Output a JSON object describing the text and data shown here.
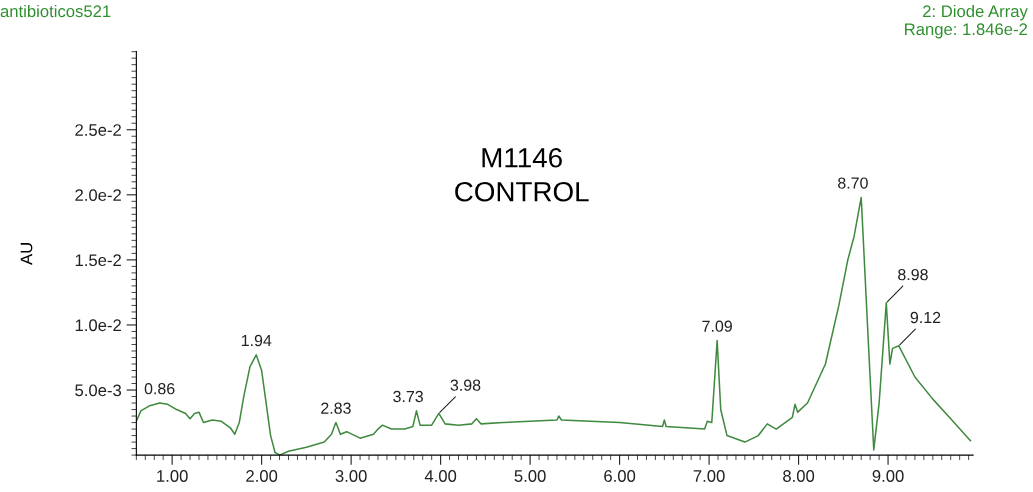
{
  "chart_data": {
    "type": "line",
    "ylabel": "AU",
    "x": [
      0.6,
      0.65,
      0.75,
      0.86,
      0.95,
      1.05,
      1.15,
      1.2,
      1.25,
      1.3,
      1.35,
      1.45,
      1.55,
      1.65,
      1.7,
      1.75,
      1.8,
      1.87,
      1.94,
      2.0,
      2.05,
      2.1,
      2.15,
      2.2,
      2.3,
      2.5,
      2.7,
      2.78,
      2.83,
      2.88,
      2.95,
      3.1,
      3.25,
      3.3,
      3.35,
      3.45,
      3.6,
      3.69,
      3.73,
      3.77,
      3.9,
      3.98,
      4.05,
      4.2,
      4.35,
      4.4,
      4.45,
      4.7,
      5.0,
      5.3,
      5.32,
      5.35,
      6.0,
      6.48,
      6.5,
      6.52,
      6.95,
      6.98,
      7.03,
      7.09,
      7.13,
      7.2,
      7.4,
      7.55,
      7.65,
      7.75,
      7.85,
      7.93,
      7.96,
      7.99,
      8.1,
      8.3,
      8.45,
      8.55,
      8.62,
      8.7,
      8.77,
      8.84,
      8.9,
      8.98,
      9.02,
      9.05,
      9.12,
      9.3,
      9.5,
      9.7,
      9.92
    ],
    "series": [
      {
        "color": "#3f8a3f",
        "values": [
          0.0026,
          0.0034,
          0.0038,
          0.004,
          0.0039,
          0.0035,
          0.0032,
          0.0028,
          0.0032,
          0.0033,
          0.0025,
          0.0027,
          0.0026,
          0.0021,
          0.0016,
          0.0025,
          0.0045,
          0.0068,
          0.0077,
          0.0065,
          0.004,
          0.0015,
          0.0002,
          0.0,
          0.0003,
          0.0006,
          0.001,
          0.0016,
          0.0025,
          0.0016,
          0.0018,
          0.0013,
          0.0016,
          0.002,
          0.0023,
          0.002,
          0.002,
          0.0022,
          0.0034,
          0.0023,
          0.0023,
          0.0032,
          0.0024,
          0.0023,
          0.0024,
          0.0028,
          0.0024,
          0.0025,
          0.0026,
          0.0027,
          0.003,
          0.0027,
          0.0025,
          0.0022,
          0.0027,
          0.0022,
          0.002,
          0.0026,
          0.0025,
          0.0088,
          0.0035,
          0.0015,
          0.001,
          0.0015,
          0.0024,
          0.002,
          0.0025,
          0.0029,
          0.0039,
          0.0033,
          0.004,
          0.007,
          0.0115,
          0.015,
          0.0168,
          0.0198,
          0.01,
          0.0004,
          0.004,
          0.0117,
          0.007,
          0.0082,
          0.0084,
          0.006,
          0.0043,
          0.0028,
          0.0011
        ]
      }
    ],
    "xlim": [
      0.6,
      9.95
    ],
    "ylim": [
      0,
      0.031
    ],
    "xticks": [
      {
        "value": 1,
        "label": "1.00"
      },
      {
        "value": 2,
        "label": "2.00"
      },
      {
        "value": 3,
        "label": "3.00"
      },
      {
        "value": 4,
        "label": "4.00"
      },
      {
        "value": 5,
        "label": "5.00"
      },
      {
        "value": 6,
        "label": "6.00"
      },
      {
        "value": 7,
        "label": "7.00"
      },
      {
        "value": 8,
        "label": "8.00"
      },
      {
        "value": 9,
        "label": "9.00"
      }
    ],
    "yticks": [
      {
        "value": 0.005,
        "label": "5.0e-3"
      },
      {
        "value": 0.01,
        "label": "1.0e-2"
      },
      {
        "value": 0.015,
        "label": "1.5e-2"
      },
      {
        "value": 0.02,
        "label": "2.0e-2"
      },
      {
        "value": 0.025,
        "label": "2.5e-2"
      }
    ],
    "annotations": [
      "antibioticos521",
      "2: Diode Array\nRange: 1.846e-2",
      "M1146\nCONTROL",
      {
        "text": "0.86",
        "x": 0.86,
        "y": 0.004
      },
      {
        "text": "1.94",
        "x": 1.94,
        "y": 0.0077
      },
      {
        "text": "2.83",
        "x": 2.83,
        "y": 0.0025
      },
      {
        "text": "3.73",
        "x": 3.73,
        "y": 0.0034
      },
      {
        "text": "3.98",
        "x": 3.98,
        "y": 0.0032
      },
      {
        "text": "7.09",
        "x": 7.09,
        "y": 0.0088
      },
      {
        "text": "8.70",
        "x": 8.7,
        "y": 0.0198
      },
      {
        "text": "8.98",
        "x": 8.98,
        "y": 0.0117
      },
      {
        "text": "9.12",
        "x": 9.12,
        "y": 0.0084
      }
    ]
  }
}
